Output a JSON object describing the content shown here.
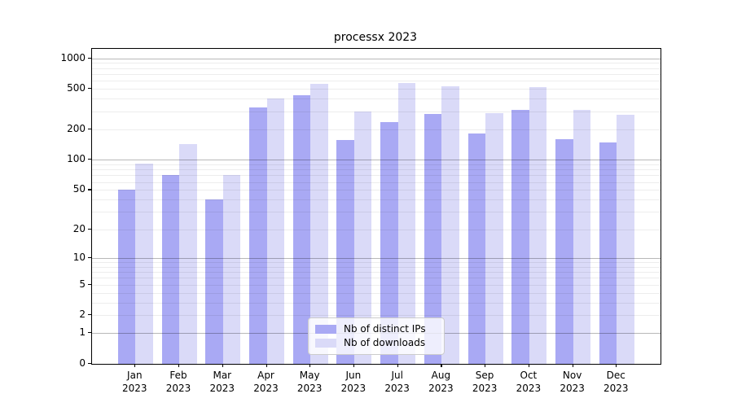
{
  "title": "processx 2023",
  "legend": {
    "entries": [
      {
        "label": "Nb of distinct IPs"
      },
      {
        "label": "Nb of downloads"
      }
    ]
  },
  "colors": {
    "bar_dark": "#a9a9f4",
    "bar_light": "#dadaf8",
    "grid_major": "rgba(0,0,0,0.28)",
    "grid_minor": "rgba(0,0,0,0.07)",
    "axis": "#000000"
  },
  "chart_data": {
    "type": "bar",
    "title": "processx 2023",
    "categories": [
      "Jan",
      "Feb",
      "Mar",
      "Apr",
      "May",
      "Jun",
      "Jul",
      "Aug",
      "Sep",
      "Oct",
      "Nov",
      "Dec"
    ],
    "category_year": "2023",
    "series": [
      {
        "name": "Nb of distinct IPs",
        "values": [
          50,
          71,
          40,
          330,
          437,
          157,
          235,
          285,
          181,
          313,
          161,
          149
        ]
      },
      {
        "name": "Nb of downloads",
        "values": [
          92,
          143,
          71,
          406,
          562,
          300,
          572,
          536,
          289,
          522,
          313,
          277
        ]
      }
    ],
    "xlabel": "",
    "ylabel": "",
    "yscale": "log1p",
    "yticks": [
      0,
      1,
      2,
      5,
      10,
      20,
      50,
      100,
      200,
      500,
      1000
    ],
    "ylim": [
      0,
      1200
    ],
    "grid": "on",
    "legend_position": "lower-center-inside"
  }
}
